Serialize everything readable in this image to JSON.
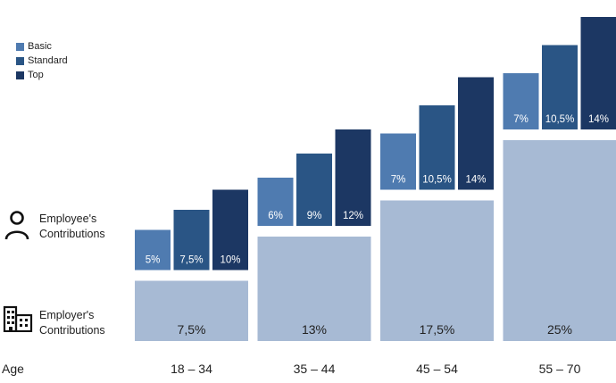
{
  "colors": {
    "basic": "#4f7bb0",
    "standard": "#2a5585",
    "top": "#1c3763",
    "employer": "#a7bad4",
    "text_light": "#ffffff",
    "text_dark": "#222222"
  },
  "legend": {
    "items": [
      {
        "label": "Basic",
        "series": "basic"
      },
      {
        "label": "Standard",
        "series": "standard"
      },
      {
        "label": "Top",
        "series": "top"
      }
    ]
  },
  "rows": {
    "employee": {
      "line1": "Employee's",
      "line2": "Contributions",
      "icon": "person-icon"
    },
    "employer": {
      "line1": "Employer's",
      "line2": "Contributions",
      "icon": "office-building-icon"
    }
  },
  "x_axis_label": "Age",
  "chart_data": {
    "type": "bar",
    "stacked": true,
    "categories": [
      "18 – 34",
      "35 – 44",
      "45 – 54",
      "55 – 70"
    ],
    "series": [
      {
        "name": "Employer's Contributions",
        "key": "employer",
        "values": [
          7.5,
          13,
          17.5,
          25
        ],
        "labels": [
          "7,5%",
          "13%",
          "17,5%",
          "25%"
        ]
      },
      {
        "name": "Basic",
        "key": "basic",
        "values": [
          5,
          6,
          7,
          7
        ],
        "labels": [
          "5%",
          "6%",
          "7%",
          "7%"
        ]
      },
      {
        "name": "Standard",
        "key": "standard",
        "values": [
          7.5,
          9,
          10.5,
          10.5
        ],
        "labels": [
          "7,5%",
          "9%",
          "10,5%",
          "10,5%"
        ]
      },
      {
        "name": "Top",
        "key": "top",
        "values": [
          10,
          12,
          14,
          14
        ],
        "labels": [
          "10%",
          "12%",
          "14%",
          "14%"
        ]
      }
    ],
    "xlabel": "Age",
    "ylabel": "",
    "grid": false,
    "legend_position": "top-left"
  }
}
